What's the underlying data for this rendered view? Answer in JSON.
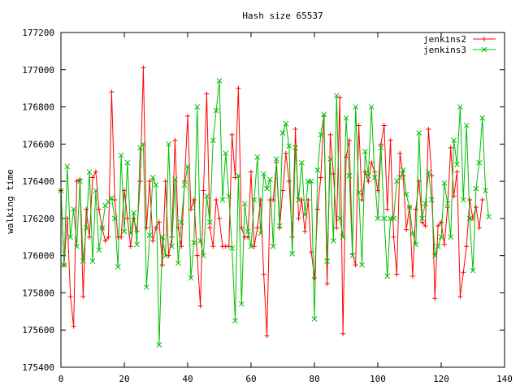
{
  "chart_data": {
    "type": "line",
    "title": "Hash size 65537",
    "xlabel": "",
    "ylabel": "walking time",
    "xlim": [
      0,
      140
    ],
    "ylim": [
      175400,
      177200
    ],
    "xticks": [
      0,
      20,
      40,
      60,
      80,
      100,
      120,
      140
    ],
    "yticks": [
      175400,
      175600,
      175800,
      176000,
      176200,
      176400,
      176600,
      176800,
      177000,
      177200
    ],
    "grid": false,
    "legend_position": "top-right",
    "series": [
      {
        "name": "jenkins2",
        "color": "#ff0000",
        "marker": "plus",
        "values": [
          176350,
          175950,
          176200,
          175780,
          175620,
          176400,
          176410,
          175780,
          176250,
          176100,
          176420,
          176450,
          176250,
          176150,
          176080,
          176100,
          176880,
          176300,
          176100,
          176100,
          176350,
          176200,
          176050,
          176200,
          176130,
          176400,
          177010,
          176150,
          176400,
          176080,
          176150,
          176180,
          175950,
          176400,
          176000,
          176100,
          176620,
          176150,
          176050,
          176400,
          176750,
          176250,
          176300,
          176000,
          175730,
          176350,
          176870,
          176150,
          176050,
          176300,
          176200,
          176050,
          176050,
          176050,
          176650,
          176420,
          176900,
          176150,
          176100,
          176100,
          176450,
          176050,
          176150,
          176300,
          175900,
          175570,
          176300,
          176300,
          176500,
          176150,
          176350,
          176550,
          176400,
          176100,
          176680,
          176200,
          176300,
          176130,
          176300,
          176020,
          175880,
          176250,
          176420,
          176750,
          175850,
          176650,
          176440,
          176150,
          176850,
          175580,
          176530,
          176620,
          176010,
          175950,
          176700,
          176300,
          176450,
          176400,
          176500,
          176450,
          176350,
          176600,
          176700,
          176250,
          176620,
          176100,
          175900,
          176550,
          176430,
          176140,
          176260,
          175890,
          176250,
          176400,
          176180,
          176160,
          176680,
          176430,
          175770,
          176160,
          176180,
          176060,
          176260,
          176580,
          176320,
          176450,
          175780,
          175910,
          176050,
          176300,
          176200,
          176260,
          176150,
          176300
        ]
      },
      {
        "name": "jenkins3",
        "color": "#00c000",
        "marker": "cross",
        "values": [
          176350,
          175950,
          176480,
          176100,
          176250,
          176050,
          176400,
          175970,
          176150,
          176450,
          175970,
          176350,
          176030,
          176150,
          176270,
          176290,
          176310,
          176200,
          175940,
          176540,
          176130,
          176500,
          176120,
          176230,
          176060,
          176580,
          176600,
          175830,
          176110,
          176420,
          176380,
          175520,
          176100,
          176000,
          176600,
          176050,
          176410,
          175960,
          176180,
          176380,
          176480,
          175880,
          176070,
          176800,
          176080,
          176000,
          176320,
          176180,
          176620,
          176780,
          176940,
          176300,
          176550,
          176320,
          176040,
          175650,
          176430,
          175740,
          176280,
          176130,
          176050,
          176300,
          176530,
          176120,
          176440,
          176360,
          176410,
          176050,
          176520,
          176160,
          176660,
          176710,
          176590,
          176010,
          176580,
          176300,
          176500,
          176220,
          176400,
          176400,
          175660,
          176460,
          176650,
          176760,
          175970,
          176520,
          176080,
          176860,
          176200,
          176100,
          176740,
          176430,
          176000,
          176800,
          176340,
          175950,
          176560,
          176430,
          176800,
          176420,
          176200,
          176580,
          176200,
          175890,
          176200,
          176200,
          176400,
          176420,
          176460,
          176330,
          176260,
          176120,
          176060,
          176660,
          176200,
          176280,
          176450,
          176300,
          176000,
          176050,
          176100,
          176390,
          176280,
          176100,
          176620,
          176490,
          176800,
          176300,
          176700,
          176200,
          175920,
          176360,
          176500,
          176740,
          176350,
          176210
        ]
      }
    ]
  }
}
